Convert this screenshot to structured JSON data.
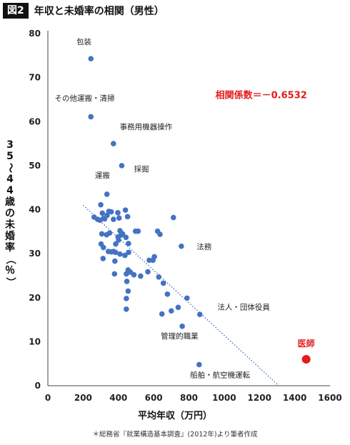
{
  "figure": {
    "badge": "図2",
    "title": "年収と未婚率の相関（男性）"
  },
  "source": "＊総務省『就業構造基本調査』(2012年)より筆者作成",
  "colors": {
    "points": "#4472c4",
    "highlight": "#e31b1b",
    "correlation_text": "#e31b1b",
    "trend": "#4472c4"
  },
  "chart_data": {
    "type": "scatter",
    "xlabel": "平均年収（万円）",
    "ylabel": "35〜44歳の未婚率（％）",
    "xlim": [
      0,
      1600
    ],
    "ylim": [
      0,
      80
    ],
    "xticks": [
      0,
      200,
      400,
      600,
      800,
      1000,
      1200,
      1400,
      1600
    ],
    "yticks": [
      0,
      10,
      20,
      30,
      40,
      50,
      60,
      70,
      80
    ],
    "grid": false,
    "annotation": "相関係数＝－0.6532",
    "trendline": {
      "style": "dotted",
      "from": [
        200,
        41
      ],
      "to": [
        1310,
        0
      ]
    },
    "labels": [
      {
        "text": "包装",
        "x": 245,
        "y": 74
      },
      {
        "text": "その他運搬・清掃",
        "x": 245,
        "y": 61
      },
      {
        "text": "事務用機器操作",
        "x": 375,
        "y": 55
      },
      {
        "text": "採掘",
        "x": 440,
        "y": 50
      },
      {
        "text": "運搬",
        "x": 350,
        "y": 43.5
      },
      {
        "text": "法務",
        "x": 795,
        "y": 31.5
      },
      {
        "text": "法人・団体役員",
        "x": 905,
        "y": 16
      },
      {
        "text": "管理的職業",
        "x": 770,
        "y": 13
      },
      {
        "text": "船舶・航空機運転",
        "x": 855,
        "y": 4.5
      },
      {
        "text": "医師",
        "x": 1465,
        "y": 6
      }
    ],
    "points": [
      [
        244,
        74.3
      ],
      [
        244,
        61.1
      ],
      [
        372,
        55
      ],
      [
        419,
        50
      ],
      [
        335,
        43.5
      ],
      [
        262,
        38.3
      ],
      [
        282,
        37.8
      ],
      [
        296,
        37.6
      ],
      [
        300,
        41.1
      ],
      [
        309,
        39.2
      ],
      [
        315,
        38
      ],
      [
        322,
        37.9
      ],
      [
        336,
        38.7
      ],
      [
        346,
        39.6
      ],
      [
        359,
        39.5
      ],
      [
        372,
        37.8
      ],
      [
        397,
        39.3
      ],
      [
        404,
        38.1
      ],
      [
        415,
        34.2
      ],
      [
        424,
        34.5
      ],
      [
        401,
        33.1
      ],
      [
        440,
        39.9
      ],
      [
        452,
        38.4
      ],
      [
        497,
        35.1
      ],
      [
        512,
        35.1
      ],
      [
        306,
        34.5
      ],
      [
        333,
        34.3
      ],
      [
        350,
        34.7
      ],
      [
        385,
        32.2
      ],
      [
        398,
        33.8
      ],
      [
        409,
        35.2
      ],
      [
        302,
        32.2
      ],
      [
        315,
        31.4
      ],
      [
        343,
        30.5
      ],
      [
        361,
        30.4
      ],
      [
        373,
        30.5
      ],
      [
        384,
        30.3
      ],
      [
        409,
        29.9
      ],
      [
        437,
        29.6
      ],
      [
        458,
        30.3
      ],
      [
        443,
        33.7
      ],
      [
        457,
        32.3
      ],
      [
        380,
        28.3
      ],
      [
        313,
        28.9
      ],
      [
        378,
        25.4
      ],
      [
        445,
        25.4
      ],
      [
        455,
        26.3
      ],
      [
        468,
        25.8
      ],
      [
        488,
        25.2
      ],
      [
        526,
        24.9
      ],
      [
        567,
        25.9
      ],
      [
        575,
        28.5
      ],
      [
        596,
        28.5
      ],
      [
        604,
        29.3
      ],
      [
        622,
        35.1
      ],
      [
        636,
        34.4
      ],
      [
        655,
        23.3
      ],
      [
        678,
        20.8
      ],
      [
        712,
        38.2
      ],
      [
        739,
        17.8
      ],
      [
        629,
        24.7
      ],
      [
        448,
        23.7
      ],
      [
        455,
        21.5
      ],
      [
        445,
        19.8
      ],
      [
        445,
        17.4
      ],
      [
        647,
        16.3
      ],
      [
        700,
        17
      ],
      [
        757,
        31.7
      ],
      [
        789,
        19.9
      ],
      [
        862,
        16.2
      ],
      [
        762,
        13.5
      ],
      [
        858,
        4.8
      ]
    ],
    "highlight": {
      "name": "医師",
      "x": 1465,
      "y": 6
    }
  }
}
